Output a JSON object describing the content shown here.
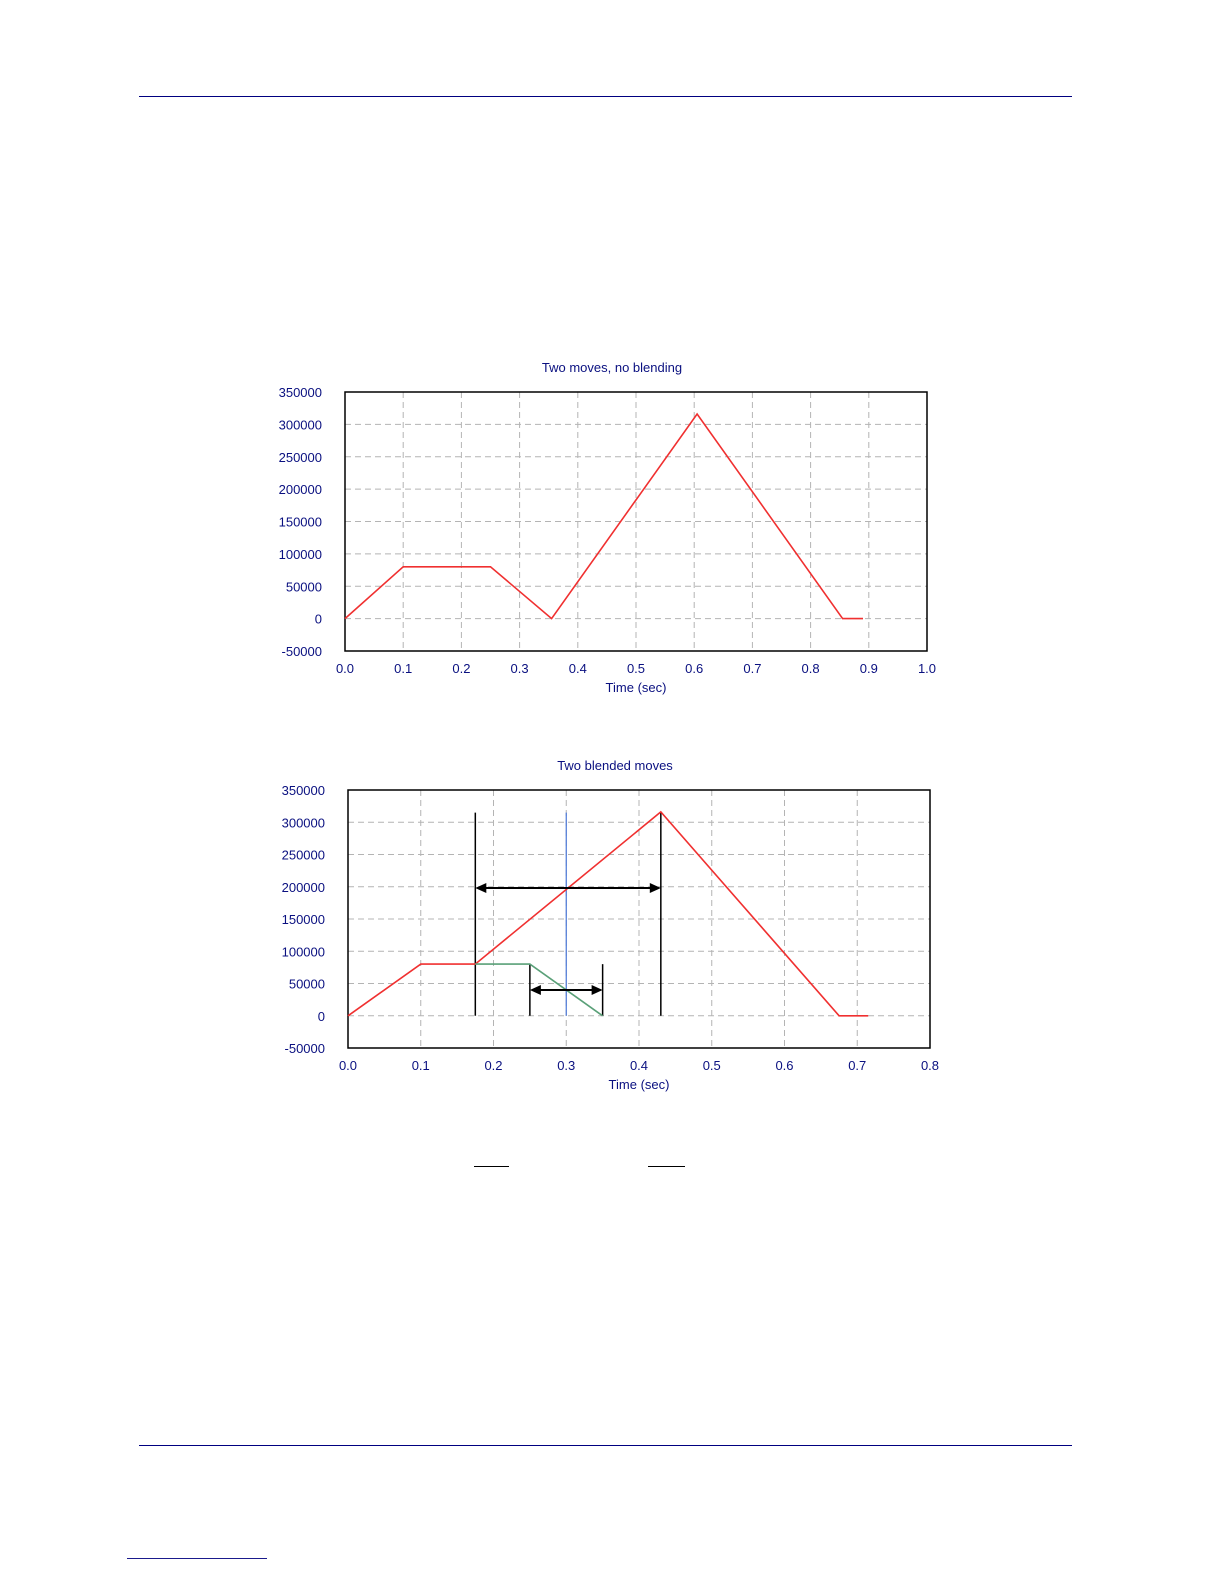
{
  "colors": {
    "header_rule": "#000080",
    "axis_text": "#0a1080",
    "grid": "#b4b4b4",
    "series_red": "#f03030",
    "series_green": "#5aa078",
    "marker_blue": "#4a78d8",
    "annotation": "#000000"
  },
  "chart_data": [
    {
      "type": "line",
      "title": "Two moves, no blending",
      "xlabel": "Time (sec)",
      "ylabel": "",
      "xlim": [
        0.0,
        1.0
      ],
      "ylim": [
        -50000,
        350000
      ],
      "grid": true,
      "x_ticks": [
        "0.0",
        "0.1",
        "0.2",
        "0.3",
        "0.4",
        "0.5",
        "0.6",
        "0.7",
        "0.8",
        "0.9",
        "1.0"
      ],
      "y_ticks": [
        "350000",
        "300000",
        "250000",
        "200000",
        "150000",
        "100000",
        "50000",
        "0",
        "-50000"
      ],
      "series": [
        {
          "color": "#f03030",
          "x": [
            0.0,
            0.1,
            0.25,
            0.355,
            0.605,
            0.855,
            0.89
          ],
          "y": [
            0,
            80000,
            80000,
            0,
            316000,
            0,
            0
          ]
        }
      ]
    },
    {
      "type": "line",
      "title": "Two blended moves",
      "xlabel": "Time (sec)",
      "ylabel": "",
      "xlim": [
        0.0,
        0.8
      ],
      "ylim": [
        -50000,
        350000
      ],
      "grid": true,
      "x_ticks": [
        "0.0",
        "0.1",
        "0.2",
        "0.3",
        "0.4",
        "0.5",
        "0.6",
        "0.7",
        "0.8"
      ],
      "y_ticks": [
        "350000",
        "300000",
        "250000",
        "200000",
        "150000",
        "100000",
        "50000",
        "0",
        "-50000"
      ],
      "series": [
        {
          "color": "#f03030",
          "x": [
            0.0,
            0.1,
            0.175,
            0.43,
            0.675,
            0.715
          ],
          "y": [
            0,
            80000,
            80000,
            316000,
            0,
            0
          ]
        },
        {
          "color": "#5aa078",
          "x": [
            0.175,
            0.25,
            0.35
          ],
          "y": [
            80000,
            80000,
            0
          ]
        }
      ],
      "annotations": {
        "vertical_lines": [
          {
            "x": 0.175,
            "y_from": 0,
            "y_to": 315000,
            "color": "#000000"
          },
          {
            "x": 0.25,
            "y_from": 0,
            "y_to": 80000,
            "color": "#000000"
          },
          {
            "x": 0.35,
            "y_from": 0,
            "y_to": 80000,
            "color": "#000000"
          },
          {
            "x": 0.43,
            "y_from": 0,
            "y_to": 316000,
            "color": "#000000"
          },
          {
            "x": 0.3,
            "y_from": 0,
            "y_to": 315000,
            "color": "#4a78d8"
          }
        ],
        "arrows": [
          {
            "x_from": 0.175,
            "x_to": 0.43,
            "y": 198000
          },
          {
            "x_from": 0.25,
            "x_to": 0.35,
            "y": 40000
          }
        ]
      }
    }
  ]
}
